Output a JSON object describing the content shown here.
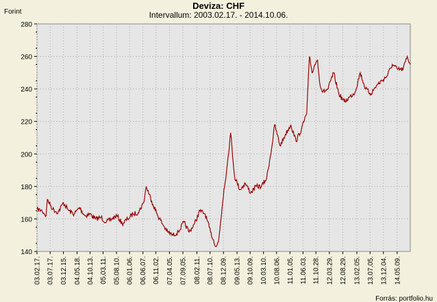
{
  "chart_data": {
    "type": "line",
    "title": "Deviza: CHF",
    "subtitle": "Intervallum: 2003.02.17. - 2014.10.06.",
    "ylabel": "Forint",
    "ylim": [
      140,
      280
    ],
    "yticks": [
      140,
      160,
      180,
      200,
      220,
      240,
      260,
      280
    ],
    "xlim": [
      "2003-02-17",
      "2014-10-06"
    ],
    "xticks": [
      "03.02.17.",
      "03.07.17.",
      "03.12.15.",
      "04.05.18.",
      "04.10.13.",
      "05.03.11.",
      "05.08.10.",
      "06.01.06.",
      "06.06.07.",
      "06.11.02.",
      "07.04.05.",
      "07.09.05.",
      "08.02.11.",
      "08.07.10.",
      "08.12.09.",
      "09.05.13.",
      "09.10.09.",
      "10.03.10.",
      "10.08.06.",
      "11.01.05.",
      "11.06.03.",
      "11.10.28.",
      "12.03.29.",
      "12.08.29.",
      "13.02.05.",
      "13.07.05.",
      "13.12.04.",
      "14.05.09."
    ],
    "grid": true,
    "source": "Forrás: portfolio.hu",
    "line_color": "#990000",
    "series": [
      {
        "x": [
          "2003-02-17",
          "2003-04-15",
          "2003-06-01",
          "2003-06-15",
          "2003-08-15",
          "2003-10-15",
          "2003-12-15",
          "2004-02-15",
          "2004-04-15",
          "2004-06-15",
          "2004-08-15",
          "2004-10-15",
          "2004-12-15",
          "2005-02-15",
          "2005-04-15",
          "2005-06-15",
          "2005-08-15",
          "2005-10-15",
          "2005-12-15",
          "2006-02-15",
          "2006-04-15",
          "2006-06-15",
          "2006-07-15",
          "2006-09-15",
          "2006-11-15",
          "2007-01-15",
          "2007-03-15",
          "2007-05-15",
          "2007-07-15",
          "2007-09-15",
          "2007-11-15",
          "2008-01-15",
          "2008-03-15",
          "2008-05-15",
          "2008-07-15",
          "2008-09-15",
          "2008-10-15",
          "2008-12-15",
          "2009-01-15",
          "2009-03-01",
          "2009-04-15",
          "2009-06-15",
          "2009-08-15",
          "2009-10-15",
          "2009-12-15",
          "2010-02-15",
          "2010-04-15",
          "2010-06-15",
          "2010-07-15",
          "2010-09-15",
          "2010-11-15",
          "2011-01-15",
          "2011-03-15",
          "2011-05-15",
          "2011-07-15",
          "2011-08-15",
          "2011-09-15",
          "2011-10-15",
          "2011-11-15",
          "2011-12-15",
          "2012-01-15",
          "2012-03-15",
          "2012-05-15",
          "2012-07-15",
          "2012-09-15",
          "2012-11-15",
          "2013-01-15",
          "2013-03-15",
          "2013-05-15",
          "2013-07-15",
          "2013-09-15",
          "2013-11-15",
          "2014-01-15",
          "2014-03-15",
          "2014-05-15",
          "2014-07-15",
          "2014-09-01",
          "2014-10-06"
        ],
        "y": [
          166,
          165,
          162,
          172,
          166,
          164,
          170,
          165,
          163,
          167,
          162,
          163,
          160,
          161,
          158,
          160,
          162,
          157,
          160,
          163,
          164,
          170,
          180,
          171,
          163,
          157,
          152,
          150,
          152,
          158,
          152,
          157,
          165,
          163,
          152,
          143,
          146,
          178,
          190,
          213,
          186,
          178,
          182,
          176,
          180,
          180,
          185,
          205,
          218,
          205,
          212,
          218,
          208,
          215,
          225,
          260,
          250,
          255,
          258,
          242,
          238,
          240,
          250,
          237,
          232,
          235,
          238,
          250,
          240,
          237,
          242,
          245,
          248,
          255,
          252,
          252,
          260,
          255
        ]
      }
    ]
  }
}
